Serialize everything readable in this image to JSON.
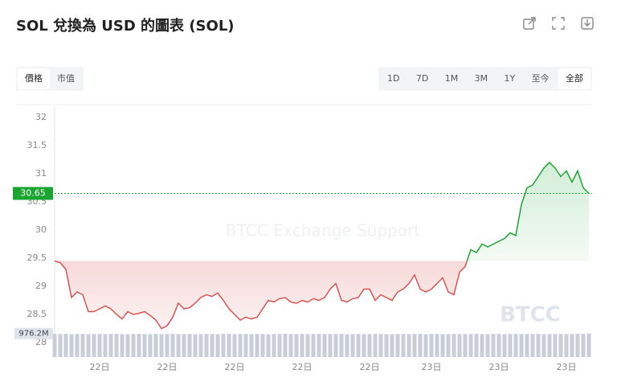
{
  "header": {
    "title": "SOL 兌換為 USD 的圖表 (SOL)"
  },
  "tabs": [
    "價格",
    "市值"
  ],
  "active_tab": 0,
  "ranges": [
    "1D",
    "7D",
    "1M",
    "3M",
    "1Y",
    "至今",
    "全部"
  ],
  "active_range": 6,
  "watermarks": [
    "BTCC Exchange Support",
    "BTCC"
  ],
  "chart_data": {
    "type": "area",
    "categories": [
      null,
      null,
      null,
      null,
      null,
      null,
      null,
      null,
      "22日",
      null,
      null,
      null,
      null,
      null,
      null,
      null,
      null,
      null,
      null,
      null,
      "22日",
      null,
      null,
      null,
      null,
      null,
      null,
      null,
      null,
      null,
      null,
      null,
      "22日",
      null,
      null,
      null,
      null,
      null,
      null,
      null,
      null,
      null,
      null,
      null,
      "22日",
      null,
      null,
      null,
      null,
      null,
      null,
      null,
      null,
      null,
      null,
      null,
      "22日",
      null,
      null,
      null,
      null,
      null,
      null,
      null,
      null,
      null,
      null,
      "23日",
      null,
      null,
      null,
      null,
      null,
      null,
      null,
      null,
      null,
      null,
      null,
      "23日",
      null,
      null,
      null,
      null,
      null,
      null,
      null,
      null,
      null,
      null,
      null,
      "23日",
      null,
      null,
      null,
      null
    ],
    "values": [
      29.45,
      29.42,
      29.3,
      28.8,
      28.9,
      28.85,
      28.55,
      28.55,
      28.6,
      28.65,
      28.6,
      28.5,
      28.42,
      28.55,
      28.5,
      28.52,
      28.55,
      28.48,
      28.4,
      28.25,
      28.3,
      28.45,
      28.7,
      28.6,
      28.62,
      28.7,
      28.8,
      28.85,
      28.82,
      28.88,
      28.75,
      28.6,
      28.5,
      28.4,
      28.45,
      28.42,
      28.45,
      28.6,
      28.75,
      28.72,
      28.78,
      28.8,
      28.72,
      28.7,
      28.75,
      28.72,
      28.78,
      28.75,
      28.8,
      28.95,
      29.05,
      28.75,
      28.72,
      28.78,
      28.8,
      28.95,
      28.95,
      28.75,
      28.85,
      28.8,
      28.75,
      28.9,
      28.95,
      29.05,
      29.2,
      28.95,
      28.9,
      28.95,
      29.05,
      29.15,
      28.9,
      28.85,
      29.25,
      29.35,
      29.65,
      29.6,
      29.75,
      29.7,
      29.75,
      29.8,
      29.85,
      29.95,
      29.9,
      30.45,
      30.75,
      30.8,
      30.95,
      31.1,
      31.2,
      31.1,
      30.95,
      31.05,
      30.85,
      31.05,
      30.75,
      30.65
    ],
    "up_color": "#1aa531",
    "down_color": "#d9534f",
    "ylim": [
      27.8,
      32.2
    ],
    "yticks": [
      28,
      28.5,
      29,
      29.5,
      30,
      30.5,
      31,
      31.5,
      32
    ],
    "grid": false,
    "volume": {
      "values": [
        960,
        955,
        965,
        950,
        958,
        962,
        948,
        955,
        960,
        952,
        957,
        963,
        950,
        946,
        958,
        961,
        955,
        949,
        960,
        954,
        957,
        962,
        951,
        956,
        959,
        948,
        953,
        960,
        955,
        950,
        957,
        962,
        949,
        955,
        958,
        951,
        956,
        960,
        947,
        954,
        958,
        962,
        950,
        955,
        957,
        949,
        953,
        960,
        956,
        951,
        958,
        962,
        948,
        955,
        959,
        950,
        954,
        961,
        957,
        949,
        953,
        958,
        960,
        951,
        955,
        962,
        948,
        956,
        959,
        950,
        953,
        960,
        957,
        951,
        955,
        962,
        949,
        954,
        958,
        960,
        952,
        956,
        961,
        949,
        955,
        958,
        963,
        950,
        954,
        959,
        957,
        951,
        955,
        962,
        960,
        976.2
      ],
      "vlim": [
        0,
        1000
      ],
      "last_label": {
        "value": 976.2,
        "label": "976.2M"
      },
      "color": "#c9cdd8"
    }
  }
}
